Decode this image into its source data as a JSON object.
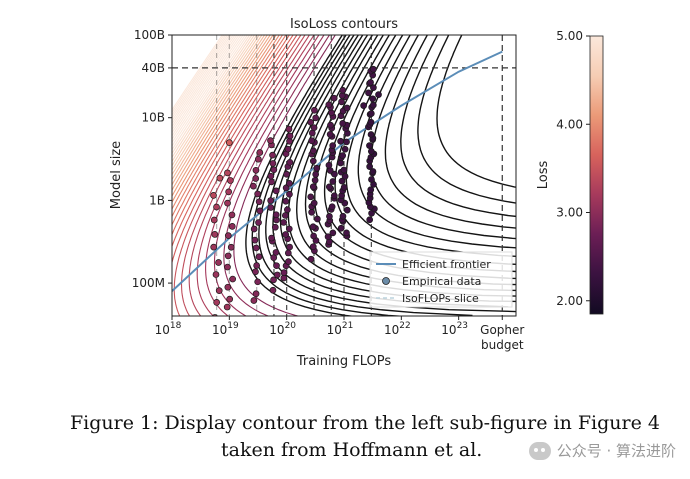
{
  "chart_data": {
    "type": "contour",
    "title": "IsoLoss contours",
    "xlabel": "Training FLOPs",
    "ylabel": "Model size",
    "x_scale": "log",
    "y_scale": "log",
    "xlim": [
      1e+18,
      1e+24
    ],
    "ylim": [
      40000000.0,
      100000000000.0
    ],
    "x_ticks": [
      {
        "value": 1e+18,
        "base": "10",
        "exp": "18"
      },
      {
        "value": 1e+19,
        "base": "10",
        "exp": "19"
      },
      {
        "value": 1e+20,
        "base": "10",
        "exp": "20"
      },
      {
        "value": 1e+21,
        "base": "10",
        "exp": "21"
      },
      {
        "value": 1e+22,
        "base": "10",
        "exp": "22"
      },
      {
        "value": 1e+23,
        "base": "10",
        "exp": "23"
      }
    ],
    "x_extra_tick": {
      "value": 5.76e+23,
      "line1": "Gopher",
      "line2": "budget"
    },
    "y_ticks": [
      {
        "value": 100000000.0,
        "label": "100M"
      },
      {
        "value": 1000000000.0,
        "label": "1B"
      },
      {
        "value": 10000000000.0,
        "label": "10B"
      },
      {
        "value": 40000000000.0,
        "label": "40B"
      },
      {
        "value": 100000000000.0,
        "label": "100B"
      }
    ],
    "gopher_budget": {
      "flops": 5.76e+23,
      "params": 40000000000.0
    },
    "efficient_frontier": {
      "name": "Efficient frontier",
      "color": "#5b8db8",
      "points": [
        [
          1e+18,
          80000000.0
        ],
        [
          1e+19,
          350000000.0
        ],
        [
          1e+20,
          1300000000.0
        ],
        [
          1e+21,
          5000000000.0
        ],
        [
          1e+22,
          14000000000.0
        ],
        [
          1e+23,
          36000000000.0
        ],
        [
          5.76e+23,
          63000000000.0
        ]
      ]
    },
    "empirical_data": {
      "name": "Empirical data"
    },
    "isoflops_slice": {
      "name": "IsoFLOPs slice",
      "flops": [
        6e+18,
        1e+19,
        3e+19,
        6e+19,
        1e+20,
        3e+20,
        6e+20,
        1e+21,
        3e+21
      ]
    },
    "colorbar": {
      "label": "Loss",
      "min": 1.85,
      "max": 5.0,
      "ticks": [
        {
          "value": 2.0,
          "label": "2.00"
        },
        {
          "value": 3.0,
          "label": "3.00"
        },
        {
          "value": 4.0,
          "label": "4.00"
        },
        {
          "value": 5.0,
          "label": "5.00"
        }
      ],
      "colors": [
        "#120a22",
        "#3a1240",
        "#6b1e55",
        "#a63a5c",
        "#d7625c",
        "#eb9a78",
        "#f6cdb4",
        "#fbe8dc"
      ]
    }
  },
  "caption": {
    "line1": "Figure 1:  Display contour from the left sub-figure in Figure 4",
    "line2": "taken from Hoffmann et al."
  },
  "watermark": {
    "text": "公众号 · 算法进阶"
  }
}
